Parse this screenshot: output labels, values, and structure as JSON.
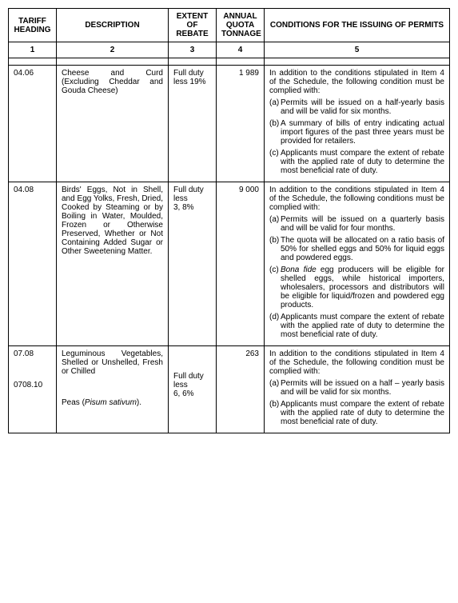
{
  "headers": {
    "tariff": "TARIFF HEADING",
    "description": "DESCRIPTION",
    "extent": "EXTENT OF REBATE",
    "tonnage": "ANNUAL QUOTA TONNAGE",
    "conditions": "CONDITIONS FOR THE ISSUING OF PERMITS"
  },
  "colnums": {
    "c1": "1",
    "c2": "2",
    "c3": "3",
    "c4": "4",
    "c5": "5"
  },
  "rows": [
    {
      "tariff": "04.06",
      "tariff_sub": "",
      "description": "Cheese and Curd (Excluding Cheddar and Gouda Cheese)",
      "description_sub": "",
      "extent": "Full duty less 19%",
      "extent_sub": "",
      "tonnage": "1 989",
      "cond_intro": "In addition to the conditions stipulated in Item 4 of the Schedule, the following condition must be complied with:",
      "items": [
        {
          "m": "(a)",
          "t": "Permits will be issued on a half-yearly basis and will be valid for six months."
        },
        {
          "m": "(b)",
          "t": "A summary of bills of entry indicating actual import figures of the past three years must be provided for retailers."
        },
        {
          "m": "(c)",
          "t": "Applicants must compare the extent of rebate with the applied rate of duty to determine the most beneficial rate of duty."
        }
      ]
    },
    {
      "tariff": "04.08",
      "tariff_sub": "",
      "description": "Birds' Eggs, Not in Shell, and Egg Yolks, Fresh, Dried, Cooked by Steaming or by Boiling in Water, Moulded, Frozen or Otherwise Preserved, Whether or Not Containing Added Sugar or Other Sweetening Matter.",
      "description_sub": "",
      "extent": "Full duty less\n3, 8%",
      "extent_sub": "",
      "tonnage": "9 000",
      "cond_intro": "In addition to the conditions stipulated in Item 4 of the Schedule, the following conditions must be complied with:",
      "items": [
        {
          "m": "(a)",
          "t": "Permits will be issued on a quarterly basis and will be valid for four months."
        },
        {
          "m": "(b)",
          "t": "The quota will be allocated on a ratio basis of 50% for shelled eggs and 50% for liquid eggs and powdered eggs."
        },
        {
          "m": "(c)",
          "t": "Bona fide egg producers will be eligible for shelled eggs, while historical importers, wholesalers, processors and distributors will be eligible for liquid/frozen and powdered egg products.",
          "italic_prefix": "Bona fide"
        },
        {
          "m": "(d)",
          "t": "Applicants must compare the extent of rebate with the applied rate of duty to determine the most beneficial rate of duty."
        }
      ]
    },
    {
      "tariff": "07.08",
      "tariff_sub": "0708.10",
      "description": "Leguminous Vegetables, Shelled or Unshelled, Fresh or Chilled",
      "description_sub": "Peas (Pisum sativum).",
      "description_sub_italic": "Pisum sativum",
      "extent": "",
      "extent_sub": "Full duty less\n6, 6%",
      "tonnage": "263",
      "cond_intro": "In addition to the conditions stipulated in Item 4 of the Schedule, the following condition must be complied with:",
      "items": [
        {
          "m": "(a)",
          "t": "Permits will be issued on a half – yearly basis and will be valid for six months."
        },
        {
          "m": "(b)",
          "t": "Applicants must compare the extent of rebate with the applied rate of duty to determine the most beneficial rate of duty."
        }
      ]
    }
  ]
}
